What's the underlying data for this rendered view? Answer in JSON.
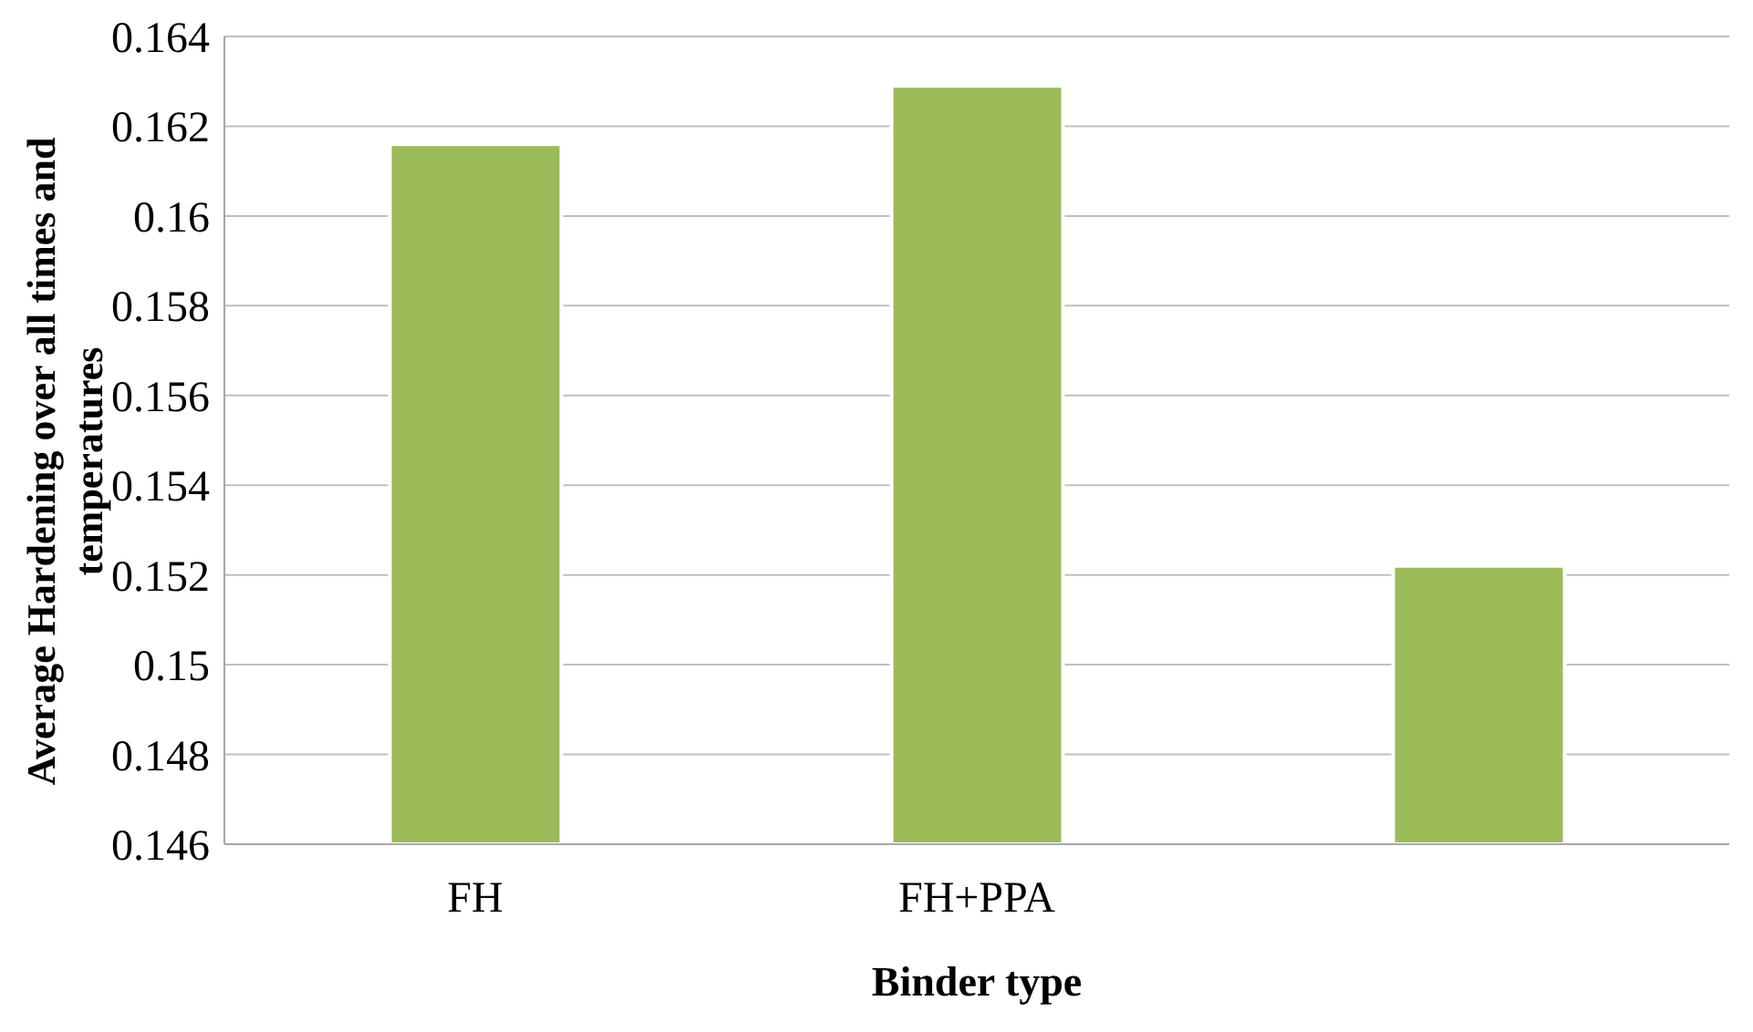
{
  "chart_data": {
    "type": "bar",
    "xlabel": "Binder type",
    "ylabel": "Average Hardening over all times and temperatures",
    "categories": [
      "FH",
      "FH+PPA",
      null
    ],
    "values": [
      0.1616,
      0.1629,
      0.1522
    ],
    "color": "#9bbb59",
    "ylim": [
      0.146,
      0.164
    ],
    "yticks": [
      0.146,
      0.148,
      0.15,
      0.152,
      0.154,
      0.156,
      0.158,
      0.16,
      0.162,
      0.164
    ],
    "grid": "y"
  }
}
